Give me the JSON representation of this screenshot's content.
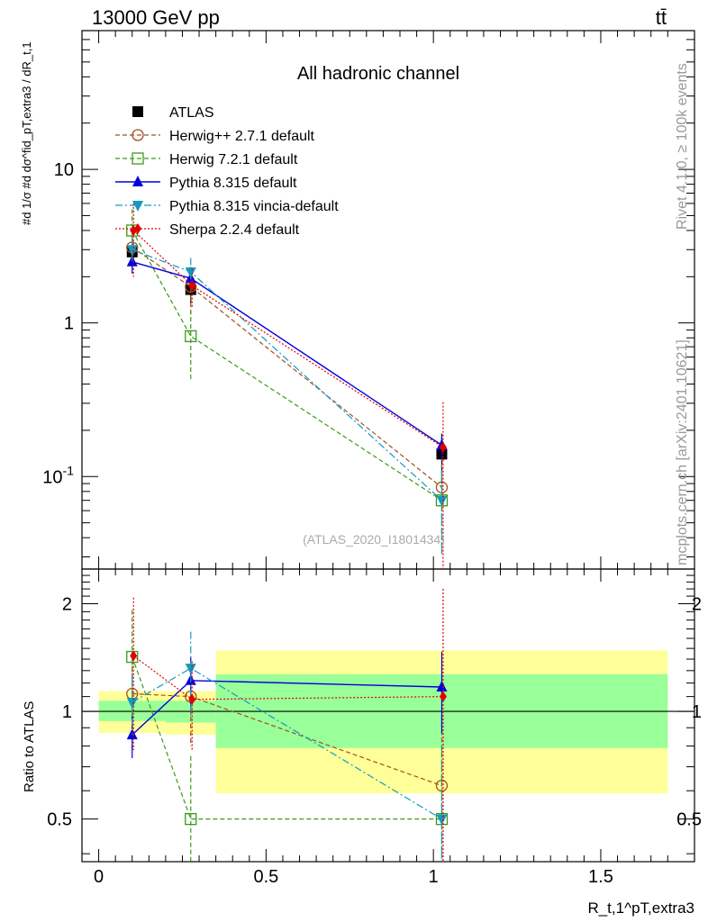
{
  "header": {
    "energy_label": "13000 GeV pp",
    "process_label": "tt̄"
  },
  "side_labels": {
    "rivet": "Rivet 4.1.0, ≥ 100k events",
    "mcplots": "mcplots.cern.ch [arXiv:2401.10621]"
  },
  "colors": {
    "ATLAS": "#000000",
    "Herwig++ 2.7.1 default": "#a0521b",
    "Herwig 7.2.1 default": "#3a9a1a",
    "Pythia 8.315 default": "#0000dd",
    "Pythia 8.315 vincia-default": "#1499c0",
    "Sherpa 2.2.4 default": "#e00000",
    "band_inner": "#99ff99",
    "band_outer": "#ffff99"
  },
  "chart_data": [
    {
      "type": "line",
      "panel": "main",
      "title": "All hadronic channel",
      "analysis_id": "(ATLAS_2020_I1801434)",
      "ylabel": "#d 1/σ #d dσ^fid_pT,extra3 / dR_t,1",
      "yscale": "log",
      "ylim": [
        0.025,
        80
      ],
      "xlim": [
        -0.05,
        1.78
      ],
      "ytick_labels": [
        "10^-1",
        "1",
        "10"
      ],
      "series": [
        {
          "name": "ATLAS",
          "marker": "square",
          "x": [
            0.1,
            0.275,
            1.025
          ],
          "y": [
            2.9,
            1.65,
            0.14
          ],
          "yerr": [
            0.5,
            0.3,
            0.05
          ]
        },
        {
          "name": "Herwig++ 2.7.1 default",
          "marker": "open-circle",
          "x": [
            0.1,
            0.275,
            1.025
          ],
          "y": [
            3.1,
            1.72,
            0.085
          ],
          "yerr": [
            1.0,
            0.6,
            0.05
          ]
        },
        {
          "name": "Herwig 7.2.1 default",
          "marker": "open-square",
          "x": [
            0.1,
            0.275,
            1.025
          ],
          "y": [
            4.0,
            0.82,
            0.07
          ],
          "yerr": [
            1.5,
            0.4,
            0.04
          ]
        },
        {
          "name": "Pythia 8.315 default",
          "marker": "triangle-up",
          "x": [
            0.1,
            0.275,
            1.025
          ],
          "y": [
            2.5,
            1.95,
            0.16
          ],
          "yerr": [
            0.4,
            0.3,
            0.03
          ]
        },
        {
          "name": "Pythia 8.315 vincia-default",
          "marker": "triangle-down",
          "x": [
            0.1,
            0.275,
            1.025
          ],
          "y": [
            3.0,
            2.15,
            0.07
          ],
          "yerr": [
            0.5,
            0.5,
            0.04
          ]
        },
        {
          "name": "Sherpa 2.2.4 default",
          "marker": "diamond",
          "x": [
            0.1,
            0.275,
            1.025
          ],
          "y": [
            4.0,
            1.75,
            0.155
          ],
          "yerr": [
            2.0,
            0.5,
            0.15
          ]
        }
      ]
    },
    {
      "type": "line",
      "panel": "ratio",
      "ylabel": "Ratio to ATLAS",
      "xlabel": "R_t,1^pT,extra3",
      "yscale": "log",
      "ylim": [
        0.38,
        2.5
      ],
      "xlim": [
        -0.05,
        1.78
      ],
      "xtick_labels": [
        "0",
        "0.5",
        "1",
        "1.5"
      ],
      "ytick_labels": [
        "0.5",
        "1",
        "2"
      ],
      "bands": [
        {
          "x_from": 0.0,
          "x_to": 0.2,
          "inner": [
            0.94,
            1.07
          ],
          "outer": [
            0.87,
            1.14
          ]
        },
        {
          "x_from": 0.2,
          "x_to": 0.35,
          "inner": [
            0.93,
            1.07
          ],
          "outer": [
            0.86,
            1.14
          ]
        },
        {
          "x_from": 0.35,
          "x_to": 1.7,
          "inner": [
            0.79,
            1.27
          ],
          "outer": [
            0.59,
            1.48
          ]
        }
      ],
      "series": [
        {
          "name": "Herwig++ 2.7.1 default",
          "x": [
            0.1,
            0.275,
            1.025
          ],
          "y": [
            1.12,
            1.1,
            0.62
          ],
          "yerr": [
            0.35,
            0.3,
            0.35
          ]
        },
        {
          "name": "Herwig 7.2.1 default",
          "x": [
            0.1,
            0.275,
            1.025
          ],
          "y": [
            1.42,
            0.5,
            0.5
          ],
          "yerr": [
            0.5,
            0.25,
            0.3
          ]
        },
        {
          "name": "Pythia 8.315 default",
          "x": [
            0.1,
            0.275,
            1.025
          ],
          "y": [
            0.86,
            1.22,
            1.17
          ],
          "yerr": [
            0.12,
            0.2,
            0.3
          ]
        },
        {
          "name": "Pythia 8.315 vincia-default",
          "x": [
            0.1,
            0.275,
            1.025
          ],
          "y": [
            1.06,
            1.32,
            0.5
          ],
          "yerr": [
            0.2,
            0.35,
            0.3
          ]
        },
        {
          "name": "Sherpa 2.2.4 default",
          "x": [
            0.1,
            0.275,
            1.025
          ],
          "y": [
            1.43,
            1.08,
            1.1
          ],
          "yerr": [
            0.65,
            0.3,
            1.1
          ]
        }
      ]
    }
  ]
}
